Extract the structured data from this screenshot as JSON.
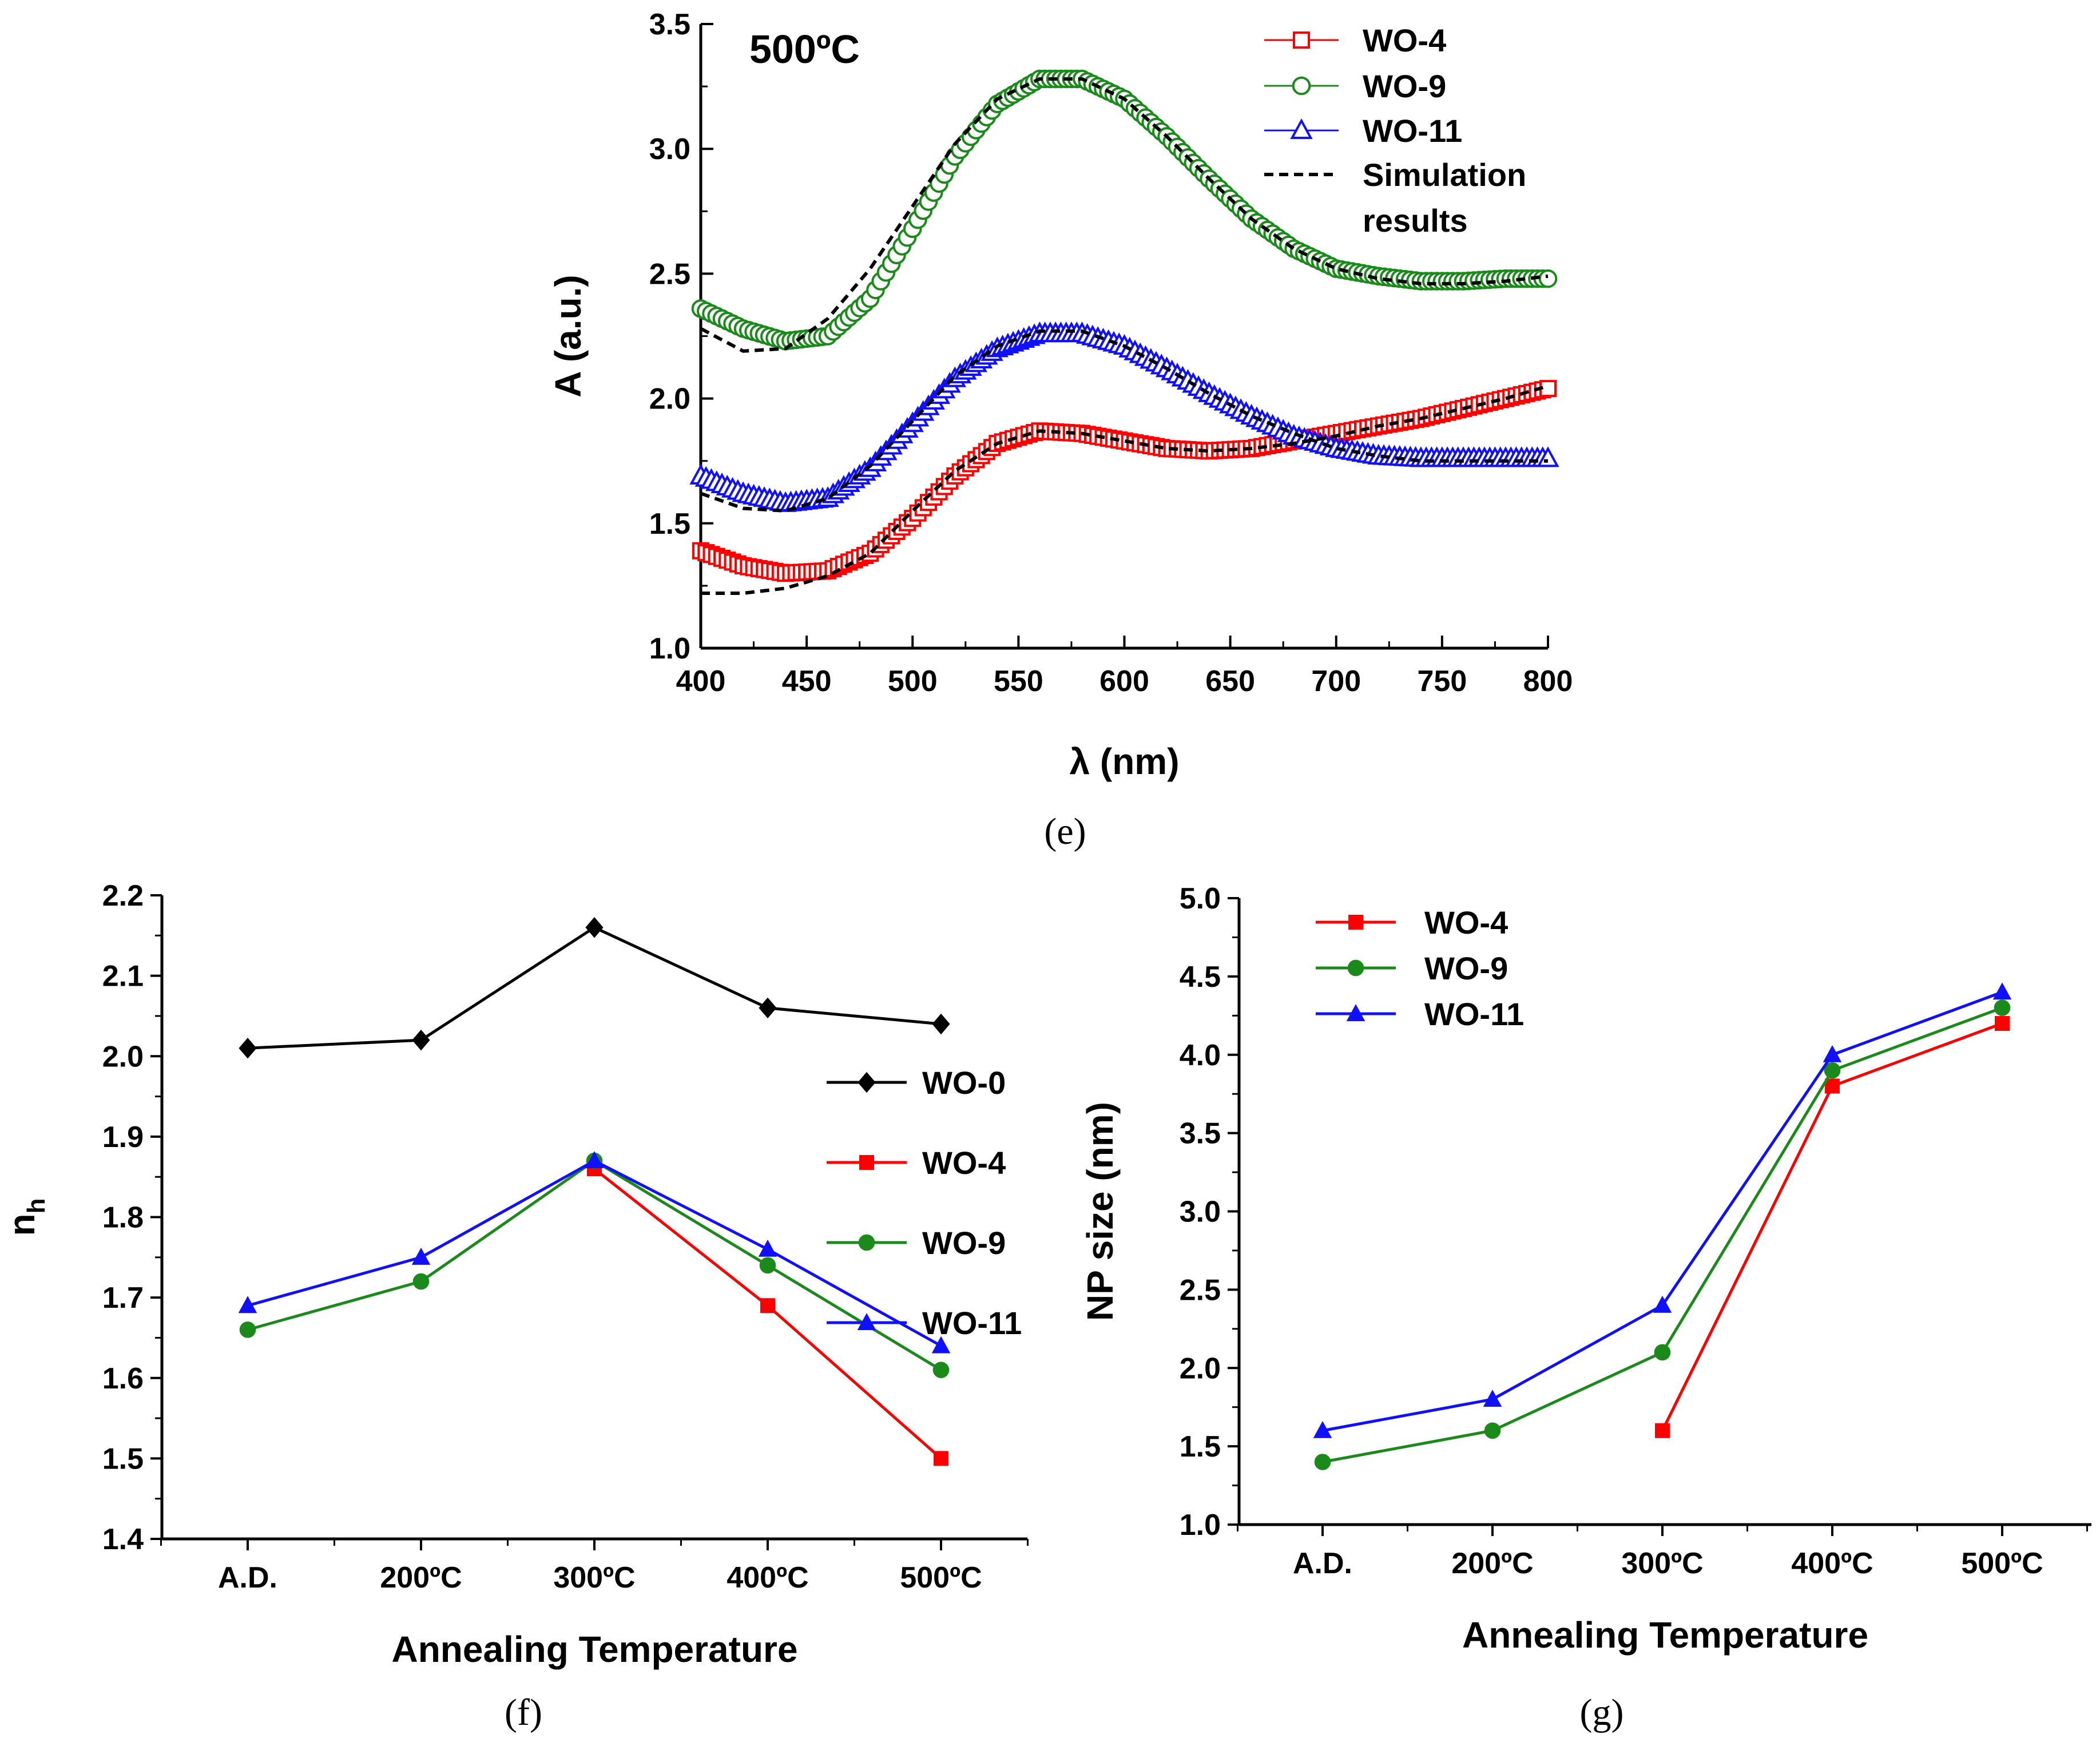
{
  "colors": {
    "WO-0": "#000000",
    "WO-4": "#ff0000",
    "WO-9": "#1a8a1a",
    "WO-11": "#1010ff",
    "simulation": "#000000"
  },
  "chart_data": [
    {
      "id": "e",
      "type": "scatter",
      "caption": "(e)",
      "title": "500ºC",
      "xlabel": "λ (nm)",
      "ylabel": "A (a.u.)",
      "xlim": [
        400,
        800
      ],
      "ylim": [
        1.0,
        3.5
      ],
      "xticks": [
        "400",
        "450",
        "500",
        "550",
        "600",
        "650",
        "700",
        "750",
        "800"
      ],
      "yticks": [
        "1.0",
        "1.5",
        "2.0",
        "2.5",
        "3.0",
        "3.5"
      ],
      "legend": [
        "WO-4",
        "WO-9",
        "WO-11",
        "Simulation",
        "results"
      ],
      "series": [
        {
          "name": "WO-4",
          "marker": "square",
          "x": [
            400,
            420,
            440,
            460,
            480,
            500,
            520,
            540,
            560,
            580,
            600,
            620,
            640,
            660,
            680,
            700,
            720,
            740,
            760,
            780,
            800
          ],
          "y": [
            1.39,
            1.33,
            1.3,
            1.31,
            1.38,
            1.52,
            1.69,
            1.82,
            1.87,
            1.86,
            1.83,
            1.8,
            1.79,
            1.8,
            1.83,
            1.86,
            1.89,
            1.92,
            1.96,
            2.0,
            2.04
          ]
        },
        {
          "name": "WO-9",
          "marker": "circle",
          "x": [
            400,
            420,
            440,
            460,
            480,
            500,
            520,
            540,
            560,
            580,
            600,
            620,
            640,
            660,
            680,
            700,
            720,
            740,
            760,
            780,
            800
          ],
          "y": [
            2.36,
            2.28,
            2.23,
            2.25,
            2.4,
            2.68,
            2.97,
            3.18,
            3.28,
            3.28,
            3.2,
            3.05,
            2.88,
            2.72,
            2.6,
            2.52,
            2.49,
            2.47,
            2.47,
            2.48,
            2.48
          ]
        },
        {
          "name": "WO-11",
          "marker": "triangle",
          "x": [
            400,
            420,
            440,
            460,
            480,
            500,
            520,
            540,
            560,
            580,
            600,
            620,
            640,
            660,
            680,
            700,
            720,
            740,
            760,
            780,
            800
          ],
          "y": [
            1.69,
            1.62,
            1.58,
            1.6,
            1.72,
            1.9,
            2.08,
            2.2,
            2.26,
            2.26,
            2.21,
            2.12,
            2.02,
            1.93,
            1.85,
            1.8,
            1.77,
            1.76,
            1.76,
            1.76,
            1.76
          ]
        },
        {
          "name": "Simulation WO-4",
          "style": "dashed",
          "x": [
            400,
            420,
            440,
            460,
            480,
            500,
            520,
            540,
            560,
            580,
            600,
            620,
            640,
            660,
            680,
            700,
            720,
            740,
            760,
            780,
            800
          ],
          "y": [
            1.22,
            1.22,
            1.24,
            1.29,
            1.38,
            1.55,
            1.71,
            1.82,
            1.87,
            1.86,
            1.83,
            1.8,
            1.79,
            1.8,
            1.82,
            1.85,
            1.89,
            1.92,
            1.96,
            2.0,
            2.05
          ]
        },
        {
          "name": "Simulation WO-9",
          "style": "dashed",
          "x": [
            400,
            420,
            440,
            460,
            480,
            500,
            520,
            540,
            560,
            580,
            600,
            620,
            640,
            660,
            680,
            700,
            720,
            740,
            760,
            780,
            800
          ],
          "y": [
            2.28,
            2.19,
            2.2,
            2.32,
            2.52,
            2.77,
            3.02,
            3.2,
            3.28,
            3.28,
            3.2,
            3.05,
            2.88,
            2.72,
            2.6,
            2.52,
            2.48,
            2.46,
            2.46,
            2.47,
            2.49
          ]
        },
        {
          "name": "Simulation WO-11",
          "style": "dashed",
          "x": [
            400,
            420,
            440,
            460,
            480,
            500,
            520,
            540,
            560,
            580,
            600,
            620,
            640,
            660,
            680,
            700,
            720,
            740,
            760,
            780,
            800
          ],
          "y": [
            1.62,
            1.56,
            1.55,
            1.6,
            1.73,
            1.91,
            2.09,
            2.21,
            2.27,
            2.27,
            2.21,
            2.12,
            2.02,
            1.93,
            1.86,
            1.8,
            1.77,
            1.75,
            1.75,
            1.75,
            1.75
          ]
        }
      ]
    },
    {
      "id": "f",
      "type": "line",
      "caption": "(f)",
      "xlabel": "Annealing Temperature",
      "ylabel": "n",
      "ylabel_sub": "h",
      "categories": [
        "A.D.",
        "200ºC",
        "300ºC",
        "400ºC",
        "500ºC"
      ],
      "ylim": [
        1.4,
        2.2
      ],
      "yticks": [
        "1.4",
        "1.5",
        "1.6",
        "1.7",
        "1.8",
        "1.9",
        "2.0",
        "2.1",
        "2.2"
      ],
      "series": [
        {
          "name": "WO-0",
          "marker": "diamond",
          "values": [
            2.01,
            2.02,
            2.16,
            2.06,
            2.04
          ]
        },
        {
          "name": "WO-4",
          "marker": "square",
          "values": [
            null,
            null,
            1.86,
            1.69,
            1.5
          ]
        },
        {
          "name": "WO-9",
          "marker": "circle",
          "values": [
            1.66,
            1.72,
            1.87,
            1.74,
            1.61
          ]
        },
        {
          "name": "WO-11",
          "marker": "triangle",
          "values": [
            1.69,
            1.75,
            1.87,
            1.76,
            1.64
          ]
        }
      ]
    },
    {
      "id": "g",
      "type": "line",
      "caption": "(g)",
      "xlabel": "Annealing Temperature",
      "ylabel": "NP size (nm)",
      "categories": [
        "A.D.",
        "200ºC",
        "300ºC",
        "400ºC",
        "500ºC"
      ],
      "ylim": [
        1.0,
        5.0
      ],
      "yticks": [
        "1.0",
        "1.5",
        "2.0",
        "2.5",
        "3.0",
        "3.5",
        "4.0",
        "4.5",
        "5.0"
      ],
      "series": [
        {
          "name": "WO-4",
          "marker": "square",
          "values": [
            null,
            null,
            1.6,
            3.8,
            4.2
          ]
        },
        {
          "name": "WO-9",
          "marker": "circle",
          "values": [
            1.4,
            1.6,
            2.1,
            3.9,
            4.3
          ]
        },
        {
          "name": "WO-11",
          "marker": "triangle",
          "values": [
            1.6,
            1.8,
            2.4,
            4.0,
            4.4
          ]
        }
      ]
    }
  ]
}
